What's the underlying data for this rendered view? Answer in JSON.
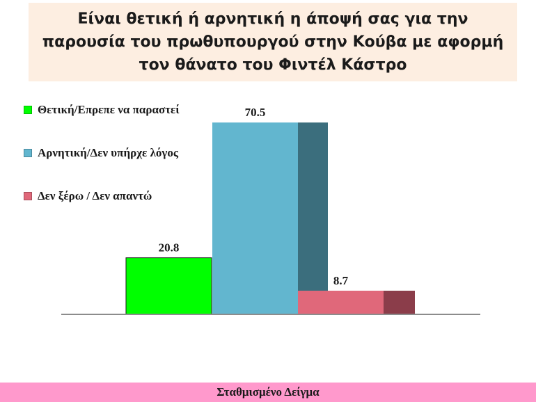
{
  "title": "Είναι θετική ή αρνητική η άποψή σας για την παρουσία του πρωθυπουργού στην Κούβα με αφορμή τον θάνατο του Φιντέλ Κάστρο",
  "footer": "Σταθμισμένο Δείγμα",
  "colors": {
    "title_bg": "#fdeee1",
    "footer_bg": "#ff99cc",
    "axis": "#8c8c8c"
  },
  "chart_data": {
    "type": "bar",
    "categories": [
      "Θετική/Επρεπε να παραστεί",
      "Αρνητική/Δεν υπήρχε λόγος",
      "Δεν ξέρω / Δεν απαντώ"
    ],
    "values": [
      20.8,
      70.5,
      8.7
    ],
    "value_labels": [
      "20.8",
      "70.5",
      "8.7"
    ],
    "colors": [
      "#00ff00",
      "#62b6cf",
      "#e0687a"
    ],
    "shade_colors": [
      null,
      "#3b6e7d",
      "#8b3d4a"
    ],
    "ylim": [
      0,
      80
    ],
    "legend_position": "top-left",
    "grid": false
  }
}
